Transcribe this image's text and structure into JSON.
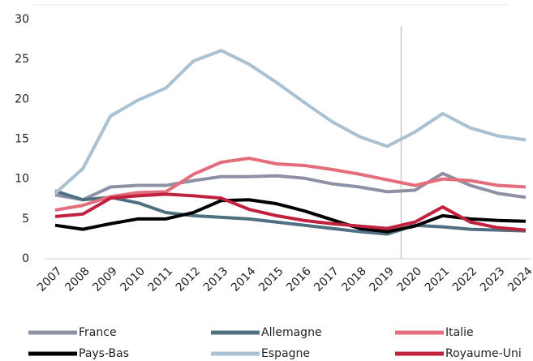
{
  "chart_data": {
    "type": "line",
    "categories": [
      "2007",
      "2008",
      "2009",
      "2010",
      "2011",
      "2012",
      "2013",
      "2014",
      "2015",
      "2016",
      "2017",
      "2018",
      "2019",
      "2020",
      "2021",
      "2022",
      "2023",
      "2024"
    ],
    "series": [
      {
        "name": "France",
        "color": "#8e91a6",
        "values": [
          8.0,
          7.4,
          9.0,
          9.2,
          9.2,
          9.8,
          10.3,
          10.3,
          10.4,
          10.1,
          9.4,
          9.0,
          8.4,
          8.6,
          10.7,
          9.2,
          8.2,
          7.7
        ]
      },
      {
        "name": "Allemagne",
        "color": "#4f7080",
        "values": [
          8.5,
          7.4,
          7.7,
          7.0,
          5.8,
          5.4,
          5.2,
          5.0,
          4.6,
          4.2,
          3.8,
          3.4,
          3.1,
          4.2,
          4.0,
          3.7,
          3.6,
          3.5
        ]
      },
      {
        "name": "Italie",
        "color": "#e46d7b",
        "values": [
          6.1,
          6.7,
          7.8,
          8.3,
          8.4,
          10.6,
          12.1,
          12.6,
          11.9,
          11.7,
          11.2,
          10.6,
          9.9,
          9.2,
          10.0,
          9.8,
          9.2,
          9.0
        ]
      },
      {
        "name": "Pays-Bas",
        "color": "#000000",
        "values": [
          4.2,
          3.7,
          4.4,
          5.0,
          5.0,
          5.8,
          7.3,
          7.4,
          6.9,
          6.0,
          4.9,
          3.8,
          3.4,
          4.1,
          5.4,
          5.0,
          4.8,
          4.7
        ]
      },
      {
        "name": "Espagne",
        "color": "#a9c1d1",
        "values": [
          8.2,
          11.3,
          17.9,
          19.9,
          21.4,
          24.8,
          26.1,
          24.4,
          22.1,
          19.6,
          17.2,
          15.3,
          14.1,
          15.9,
          18.2,
          16.4,
          15.4,
          14.9
        ]
      },
      {
        "name": "Royaume-Uni",
        "color": "#c0213f",
        "values": [
          5.3,
          5.6,
          7.6,
          7.9,
          8.1,
          7.9,
          7.6,
          6.2,
          5.4,
          4.8,
          4.4,
          4.1,
          3.8,
          4.6,
          6.5,
          4.6,
          3.9,
          3.6
        ]
      }
    ],
    "ylim": [
      0,
      30
    ],
    "yticks": [
      0,
      5,
      10,
      15,
      20,
      25,
      30
    ],
    "grid": false
  }
}
